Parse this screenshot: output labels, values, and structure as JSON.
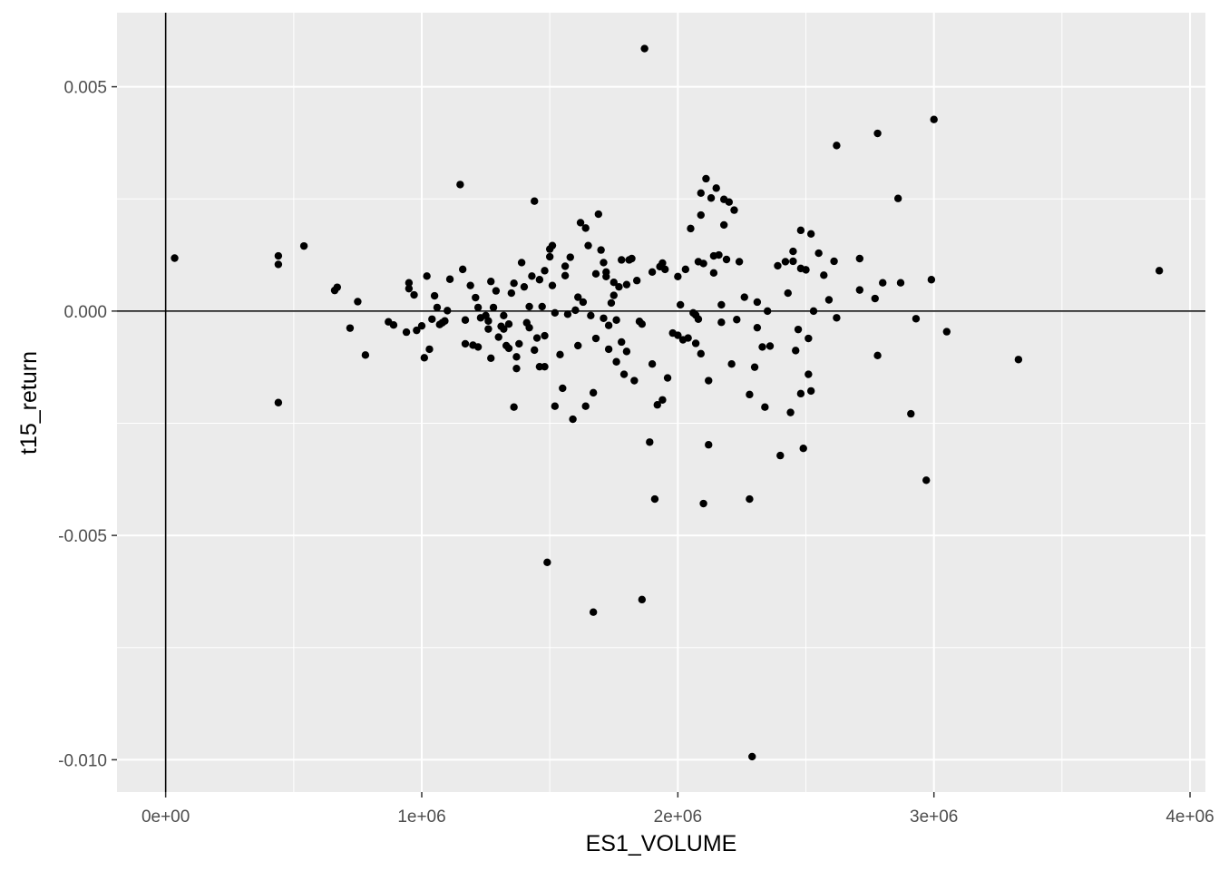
{
  "chart_data": {
    "type": "scatter",
    "xlabel": "ES1_VOLUME",
    "ylabel": "t15_return",
    "xlim": [
      -190000,
      4060000
    ],
    "ylim": [
      -0.01072,
      0.00665
    ],
    "x_ticks": [
      {
        "value": 0,
        "label": "0e+00"
      },
      {
        "value": 1000000,
        "label": "1e+06"
      },
      {
        "value": 2000000,
        "label": "2e+06"
      },
      {
        "value": 3000000,
        "label": "3e+06"
      },
      {
        "value": 4000000,
        "label": "4e+06"
      }
    ],
    "y_ticks": [
      {
        "value": 0.005,
        "label": "0.005"
      },
      {
        "value": 0.0,
        "label": "0.000"
      },
      {
        "value": -0.005,
        "label": "-0.005"
      },
      {
        "value": -0.01,
        "label": "-0.010"
      }
    ],
    "reference_lines": {
      "x": 0,
      "y": 0
    },
    "grid": true,
    "panel_background": "#ebebeb",
    "grid_color": "#ffffff",
    "point_color": "#000000",
    "points": [
      [
        35000,
        0.00118
      ],
      [
        440000,
        0.00123
      ],
      [
        440000,
        0.00104
      ],
      [
        540000,
        0.00145
      ],
      [
        440000,
        -0.00204
      ],
      [
        660000,
        0.00046
      ],
      [
        670000,
        0.00053
      ],
      [
        720000,
        -0.00038
      ],
      [
        750000,
        0.00021
      ],
      [
        780000,
        -0.00098
      ],
      [
        870000,
        -0.00024
      ],
      [
        890000,
        -0.00031
      ],
      [
        940000,
        -0.00047
      ],
      [
        950000,
        0.00063
      ],
      [
        950000,
        0.0005
      ],
      [
        970000,
        0.00036
      ],
      [
        980000,
        -0.00043
      ],
      [
        1000000,
        -0.00033
      ],
      [
        1010000,
        -0.00104
      ],
      [
        1020000,
        0.00078
      ],
      [
        1030000,
        -0.00085
      ],
      [
        1040000,
        -0.00018
      ],
      [
        1050000,
        0.00034
      ],
      [
        1060000,
        8e-05
      ],
      [
        1070000,
        -0.0003
      ],
      [
        1080000,
        -0.00026
      ],
      [
        1090000,
        -0.00022
      ],
      [
        1100000,
        1e-05
      ],
      [
        1110000,
        0.00071
      ],
      [
        1150000,
        0.00282
      ],
      [
        1160000,
        0.00093
      ],
      [
        1170000,
        -0.0002
      ],
      [
        1170000,
        -0.00073
      ],
      [
        1190000,
        0.00057
      ],
      [
        1200000,
        -0.00076
      ],
      [
        1210000,
        0.0003
      ],
      [
        1220000,
        8e-05
      ],
      [
        1220000,
        -0.0008
      ],
      [
        1230000,
        -0.00015
      ],
      [
        1250000,
        -0.0001
      ],
      [
        1260000,
        -0.0004
      ],
      [
        1260000,
        -0.00022
      ],
      [
        1270000,
        -0.00105
      ],
      [
        1270000,
        0.00066
      ],
      [
        1280000,
        8e-05
      ],
      [
        1290000,
        0.00045
      ],
      [
        1300000,
        -0.00058
      ],
      [
        1310000,
        -0.00034
      ],
      [
        1320000,
        -0.0001
      ],
      [
        1320000,
        -0.0004
      ],
      [
        1330000,
        -0.00077
      ],
      [
        1340000,
        -0.00029
      ],
      [
        1340000,
        -0.00083
      ],
      [
        1350000,
        0.0004
      ],
      [
        1360000,
        -0.00214
      ],
      [
        1360000,
        0.00062
      ],
      [
        1370000,
        -0.00128
      ],
      [
        1370000,
        -0.00102
      ],
      [
        1380000,
        -0.00073
      ],
      [
        1390000,
        0.00108
      ],
      [
        1400000,
        0.00054
      ],
      [
        1410000,
        -0.00026
      ],
      [
        1420000,
        -0.00037
      ],
      [
        1420000,
        0.0001
      ],
      [
        1430000,
        0.00078
      ],
      [
        1440000,
        0.00245
      ],
      [
        1440000,
        -0.00087
      ],
      [
        1450000,
        -0.0006
      ],
      [
        1460000,
        0.0007
      ],
      [
        1460000,
        -0.00124
      ],
      [
        1470000,
        0.0001
      ],
      [
        1480000,
        -0.00055
      ],
      [
        1480000,
        -0.00124
      ],
      [
        1480000,
        0.0009
      ],
      [
        1490000,
        -0.0056
      ],
      [
        1500000,
        0.00138
      ],
      [
        1500000,
        0.00121
      ],
      [
        1510000,
        0.00146
      ],
      [
        1510000,
        0.00057
      ],
      [
        1520000,
        -4e-05
      ],
      [
        1520000,
        -0.00212
      ],
      [
        1540000,
        -0.00097
      ],
      [
        1550000,
        -0.00172
      ],
      [
        1560000,
        0.001
      ],
      [
        1560000,
        0.00079
      ],
      [
        1570000,
        -7e-05
      ],
      [
        1580000,
        0.0012
      ],
      [
        1590000,
        -0.00241
      ],
      [
        1600000,
        2e-05
      ],
      [
        1610000,
        -0.00077
      ],
      [
        1610000,
        0.00031
      ],
      [
        1620000,
        0.00197
      ],
      [
        1630000,
        0.0002
      ],
      [
        1640000,
        0.00185
      ],
      [
        1640000,
        -0.00212
      ],
      [
        1650000,
        0.00146
      ],
      [
        1660000,
        -0.0001
      ],
      [
        1670000,
        -0.00671
      ],
      [
        1670000,
        -0.00182
      ],
      [
        1680000,
        0.00083
      ],
      [
        1680000,
        -0.00061
      ],
      [
        1690000,
        0.00216
      ],
      [
        1700000,
        0.00136
      ],
      [
        1710000,
        -0.00016
      ],
      [
        1710000,
        0.00108
      ],
      [
        1720000,
        0.00087
      ],
      [
        1720000,
        0.00077
      ],
      [
        1730000,
        -0.00032
      ],
      [
        1730000,
        -0.00085
      ],
      [
        1740000,
        0.00018
      ],
      [
        1750000,
        0.00064
      ],
      [
        1750000,
        0.00035
      ],
      [
        1760000,
        -0.0002
      ],
      [
        1760000,
        -0.00113
      ],
      [
        1770000,
        0.00054
      ],
      [
        1780000,
        -0.00069
      ],
      [
        1780000,
        0.00114
      ],
      [
        1790000,
        -0.00141
      ],
      [
        1800000,
        -0.0009
      ],
      [
        1800000,
        0.00059
      ],
      [
        1810000,
        0.00114
      ],
      [
        1820000,
        0.00117
      ],
      [
        1830000,
        -0.00155
      ],
      [
        1840000,
        0.00068
      ],
      [
        1850000,
        -0.00023
      ],
      [
        1860000,
        -0.00029
      ],
      [
        1860000,
        -0.00643
      ],
      [
        1870000,
        0.00585
      ],
      [
        1890000,
        -0.00292
      ],
      [
        1900000,
        -0.00118
      ],
      [
        1900000,
        0.00087
      ],
      [
        1910000,
        -0.00419
      ],
      [
        1920000,
        -0.00209
      ],
      [
        1930000,
        0.00099
      ],
      [
        1940000,
        -0.00198
      ],
      [
        1940000,
        0.00107
      ],
      [
        1950000,
        0.00093
      ],
      [
        1960000,
        -0.00149
      ],
      [
        1980000,
        -0.00049
      ],
      [
        2000000,
        0.00077
      ],
      [
        2000000,
        -0.00054
      ],
      [
        2010000,
        0.00014
      ],
      [
        2020000,
        -0.00064
      ],
      [
        2030000,
        0.00093
      ],
      [
        2040000,
        -0.0006
      ],
      [
        2050000,
        0.00184
      ],
      [
        2060000,
        -4e-05
      ],
      [
        2070000,
        -9e-05
      ],
      [
        2070000,
        -0.00072
      ],
      [
        2080000,
        0.0011
      ],
      [
        2080000,
        -0.00018
      ],
      [
        2090000,
        0.00263
      ],
      [
        2090000,
        0.00214
      ],
      [
        2090000,
        -0.00095
      ],
      [
        2100000,
        -0.00429
      ],
      [
        2100000,
        0.00106
      ],
      [
        2110000,
        0.00295
      ],
      [
        2120000,
        -0.00155
      ],
      [
        2120000,
        -0.00298
      ],
      [
        2130000,
        0.00252
      ],
      [
        2140000,
        0.00123
      ],
      [
        2140000,
        0.00085
      ],
      [
        2150000,
        0.00274
      ],
      [
        2160000,
        0.00125
      ],
      [
        2170000,
        0.00014
      ],
      [
        2170000,
        -0.00025
      ],
      [
        2180000,
        0.00192
      ],
      [
        2180000,
        0.00249
      ],
      [
        2190000,
        0.00115
      ],
      [
        2200000,
        0.00243
      ],
      [
        2210000,
        -0.00118
      ],
      [
        2220000,
        0.00225
      ],
      [
        2230000,
        -0.00019
      ],
      [
        2240000,
        0.0011
      ],
      [
        2260000,
        0.00031
      ],
      [
        2280000,
        -0.00419
      ],
      [
        2280000,
        -0.00186
      ],
      [
        2290000,
        -0.00993
      ],
      [
        2300000,
        -0.00125
      ],
      [
        2310000,
        0.0002
      ],
      [
        2310000,
        -0.00037
      ],
      [
        2330000,
        -0.0008
      ],
      [
        2340000,
        -0.00214
      ],
      [
        2350000,
        0.0
      ],
      [
        2360000,
        -0.00078
      ],
      [
        2390000,
        0.00101
      ],
      [
        2400000,
        -0.00322
      ],
      [
        2420000,
        0.0011
      ],
      [
        2430000,
        0.0004
      ],
      [
        2440000,
        -0.00226
      ],
      [
        2450000,
        0.00133
      ],
      [
        2450000,
        0.00111
      ],
      [
        2460000,
        -0.00088
      ],
      [
        2470000,
        -0.00041
      ],
      [
        2480000,
        -0.00184
      ],
      [
        2480000,
        0.00095
      ],
      [
        2480000,
        0.0018
      ],
      [
        2490000,
        -0.00306
      ],
      [
        2500000,
        0.00092
      ],
      [
        2510000,
        -0.00061
      ],
      [
        2510000,
        -0.00141
      ],
      [
        2520000,
        -0.00178
      ],
      [
        2520000,
        0.00172
      ],
      [
        2530000,
        0.0
      ],
      [
        2550000,
        0.00129
      ],
      [
        2570000,
        0.0008
      ],
      [
        2590000,
        0.00025
      ],
      [
        2610000,
        0.00111
      ],
      [
        2620000,
        0.00369
      ],
      [
        2620000,
        -0.00015
      ],
      [
        2710000,
        0.00117
      ],
      [
        2710000,
        0.00047
      ],
      [
        2770000,
        0.00028
      ],
      [
        2780000,
        0.00396
      ],
      [
        2780000,
        -0.00099
      ],
      [
        2800000,
        0.00063
      ],
      [
        2860000,
        0.00251
      ],
      [
        2870000,
        0.00063
      ],
      [
        2910000,
        -0.00229
      ],
      [
        2930000,
        -0.00017
      ],
      [
        2970000,
        -0.00377
      ],
      [
        2990000,
        0.0007
      ],
      [
        3000000,
        0.00427
      ],
      [
        3050000,
        -0.00046
      ],
      [
        3330000,
        -0.00108
      ],
      [
        3880000,
        0.0009
      ]
    ]
  }
}
